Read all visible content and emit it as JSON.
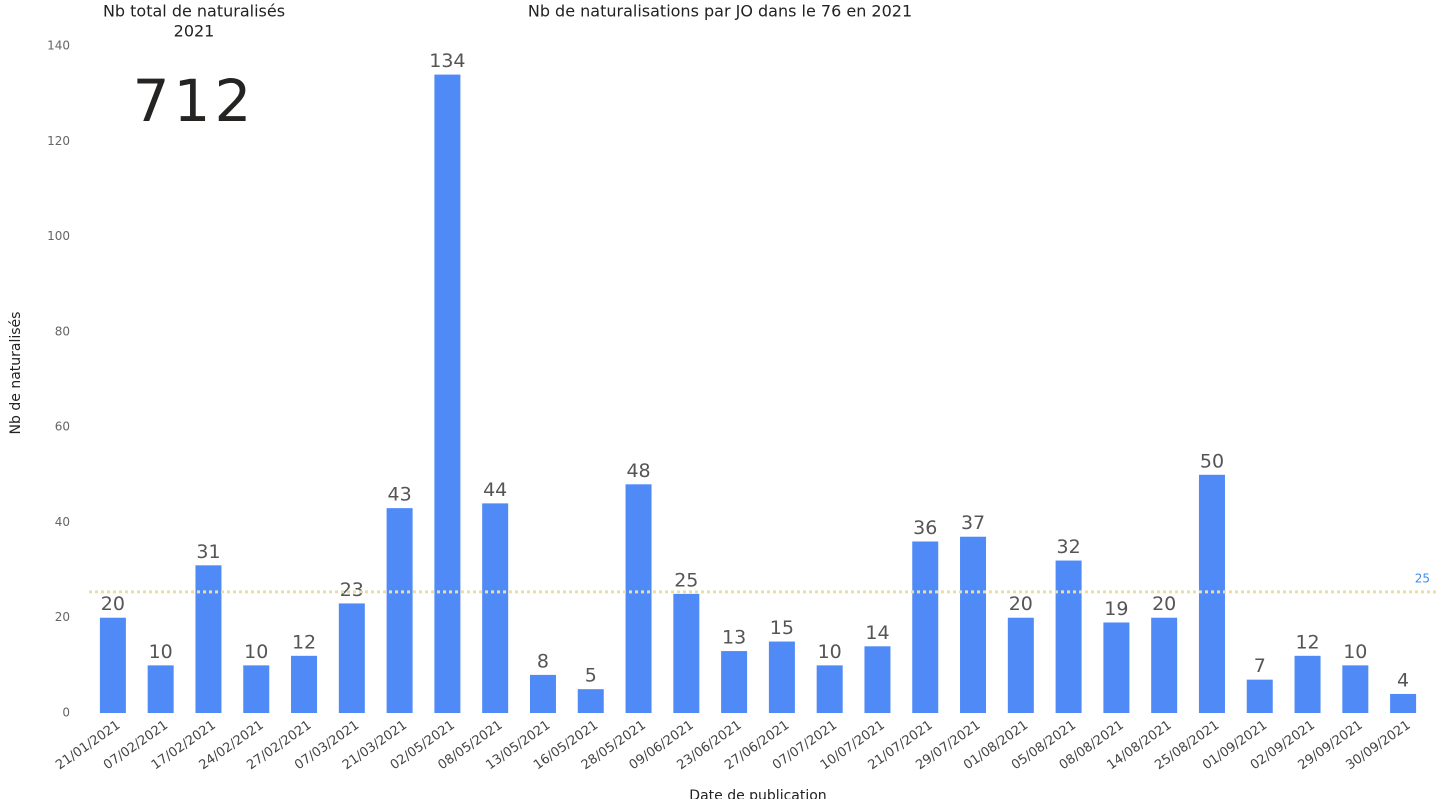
{
  "card": {
    "title": [
      "Nb total de naturalisés",
      "2021"
    ],
    "value": 712
  },
  "chart_data": {
    "type": "bar",
    "title": "Nb de naturalisations par JO dans le 76 en 2021",
    "x_label": "Date de publication",
    "y_label": "Nb de naturalisés",
    "categories": [
      "21/01/2021",
      "07/02/2021",
      "17/02/2021",
      "24/02/2021",
      "27/02/2021",
      "07/03/2021",
      "21/03/2021",
      "02/05/2021",
      "08/05/2021",
      "13/05/2021",
      "16/05/2021",
      "28/05/2021",
      "09/06/2021",
      "23/06/2021",
      "27/06/2021",
      "07/07/2021",
      "10/07/2021",
      "21/07/2021",
      "29/07/2021",
      "01/08/2021",
      "05/08/2021",
      "08/08/2021",
      "14/08/2021",
      "25/08/2021",
      "01/09/2021",
      "02/09/2021",
      "29/09/2021",
      "30/09/2021"
    ],
    "values": [
      20,
      10,
      31,
      10,
      12,
      23,
      43,
      134,
      44,
      8,
      5,
      48,
      25,
      13,
      15,
      10,
      14,
      36,
      37,
      20,
      32,
      19,
      20,
      50,
      7,
      12,
      10,
      4
    ],
    "color": "#508af7",
    "ylim": [
      0,
      140
    ],
    "yticks": [
      0,
      20,
      40,
      60,
      80,
      100,
      120,
      140
    ],
    "reference_line": {
      "value": 25.43,
      "label": "25",
      "color": "#e8dfa6",
      "label_color": "#3c8ee8"
    }
  }
}
